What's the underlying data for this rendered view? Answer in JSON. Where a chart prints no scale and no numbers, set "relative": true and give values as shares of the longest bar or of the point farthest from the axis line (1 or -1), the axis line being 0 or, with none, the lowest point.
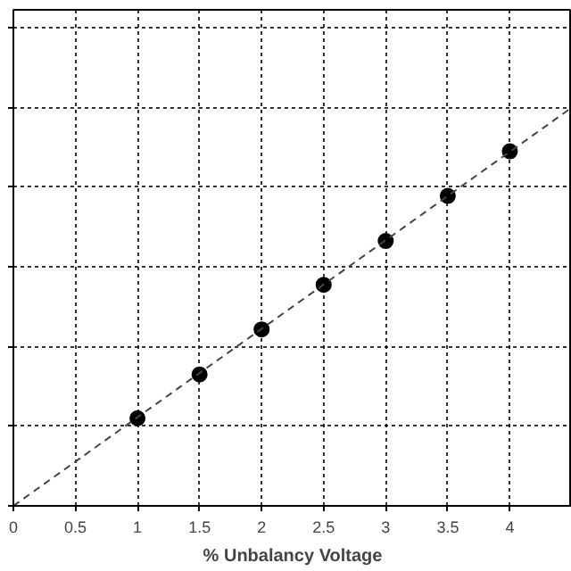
{
  "chart_data": {
    "type": "scatter",
    "xlabel": "% Unbalancy Voltage",
    "relative": true,
    "series": [
      {
        "color": "#000000",
        "marker": "circle",
        "x": [
          1,
          1.5,
          2,
          2.5,
          3,
          3.5,
          4
        ],
        "values": [
          0.22,
          0.33,
          0.443,
          0.555,
          0.665,
          0.778,
          0.89
        ]
      },
      {
        "type": "line",
        "color": "#444444",
        "marker": "none",
        "line_style": "dashed",
        "x": [
          0,
          4.5
        ],
        "values": [
          0,
          1
        ]
      }
    ],
    "xlim": [
      0,
      4.5
    ],
    "xticks": [
      0,
      0.5,
      1,
      1.5,
      2,
      2.5,
      3,
      3.5,
      4
    ],
    "tick_labels": "x",
    "grid": true
  }
}
